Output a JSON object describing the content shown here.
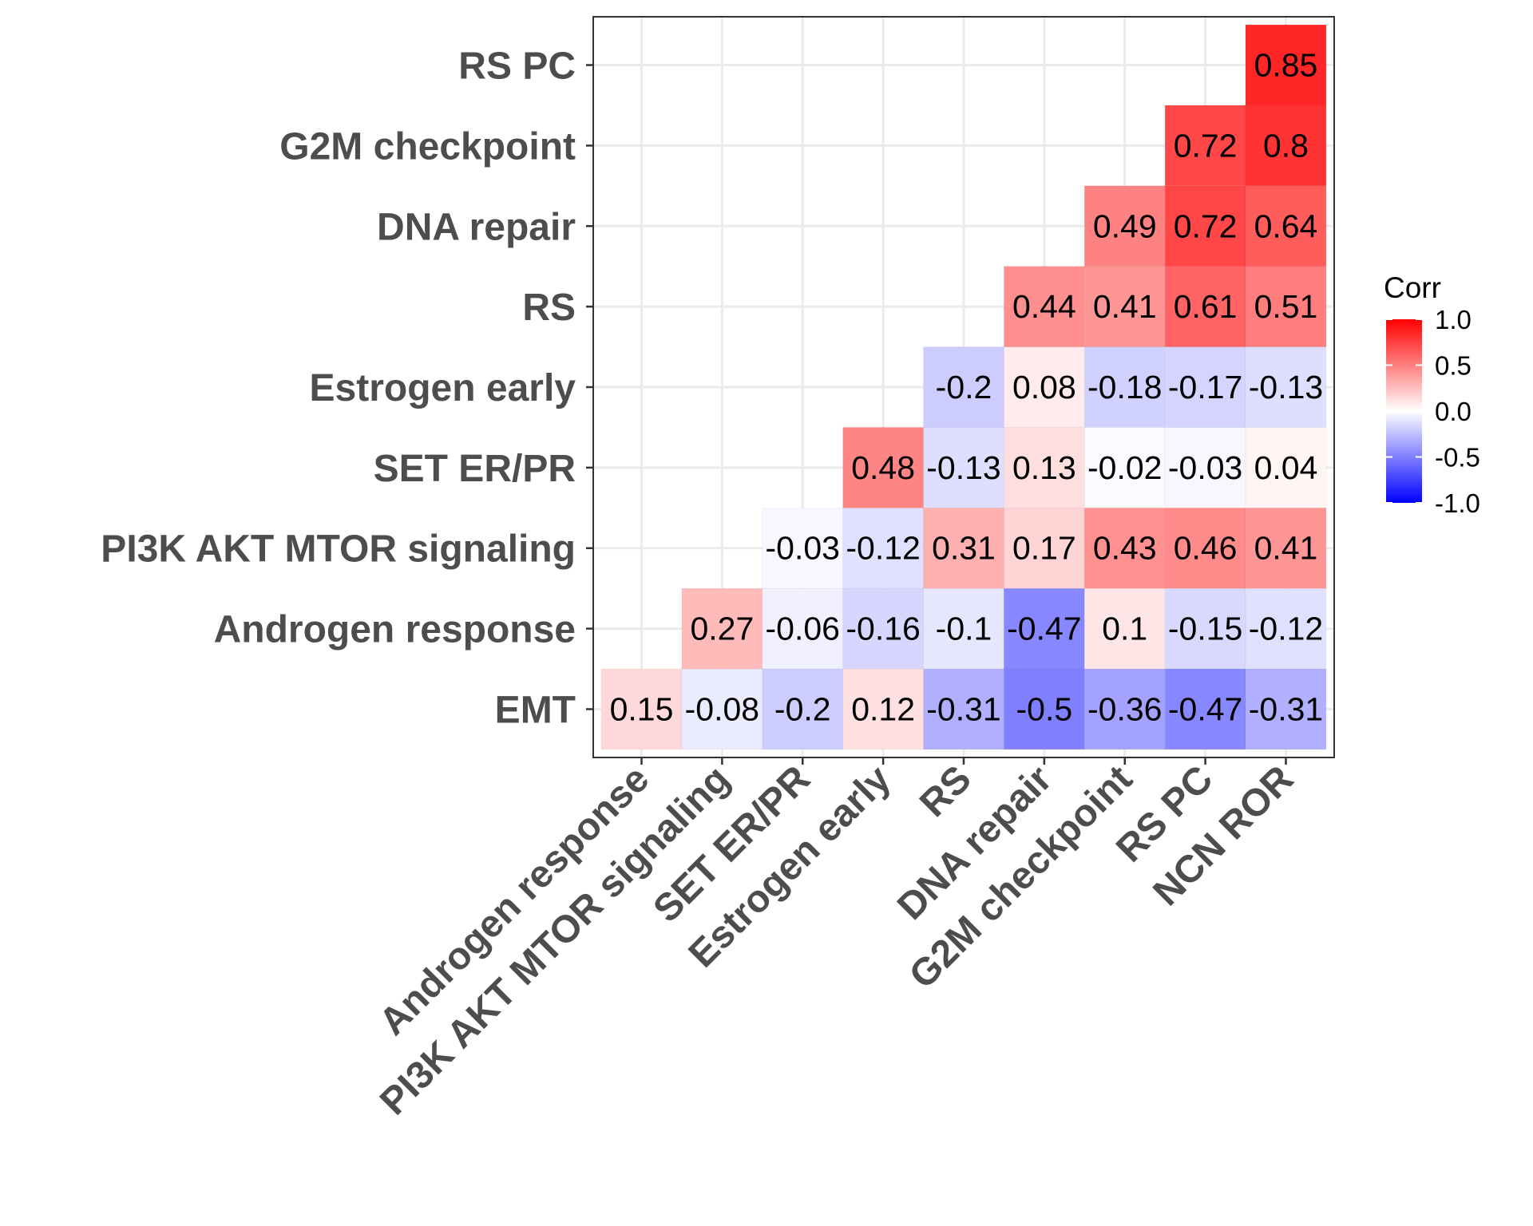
{
  "chart_data": {
    "type": "heatmap",
    "title": "",
    "xlabel": "",
    "ylabel": "",
    "x_categories": [
      "Androgen response",
      "PI3K AKT MTOR signaling",
      "SET ER/PR",
      "Estrogen early",
      "RS",
      "DNA repair",
      "G2M checkpoint",
      "RS PC",
      "NCN ROR"
    ],
    "y_categories": [
      "EMT",
      "Androgen response",
      "PI3K AKT MTOR signaling",
      "SET ER/PR",
      "Estrogen early",
      "RS",
      "DNA repair",
      "G2M checkpoint",
      "RS PC"
    ],
    "values": [
      [
        0.15,
        -0.08,
        -0.2,
        0.12,
        -0.31,
        -0.5,
        -0.36,
        -0.47,
        -0.31
      ],
      [
        null,
        0.27,
        -0.06,
        -0.16,
        -0.1,
        -0.47,
        0.1,
        -0.15,
        -0.12
      ],
      [
        null,
        null,
        -0.03,
        -0.12,
        0.31,
        0.17,
        0.43,
        0.46,
        0.41
      ],
      [
        null,
        null,
        null,
        0.48,
        -0.13,
        0.13,
        -0.02,
        -0.03,
        0.04
      ],
      [
        null,
        null,
        null,
        null,
        -0.2,
        0.08,
        -0.18,
        -0.17,
        -0.13
      ],
      [
        null,
        null,
        null,
        null,
        null,
        0.44,
        0.41,
        0.61,
        0.51
      ],
      [
        null,
        null,
        null,
        null,
        null,
        null,
        0.49,
        0.72,
        0.64
      ],
      [
        null,
        null,
        null,
        null,
        null,
        null,
        null,
        0.72,
        0.8
      ],
      [
        null,
        null,
        null,
        null,
        null,
        null,
        null,
        null,
        0.85
      ]
    ],
    "legend": {
      "title": "Corr",
      "position": "right",
      "range": [
        -1.0,
        1.0
      ],
      "ticks": [
        "1.0",
        "0.5",
        "0.0",
        "-0.5",
        "-1.0"
      ],
      "low_color": "#0000ff",
      "mid_color": "#ffffff",
      "high_color": "#ff0000"
    },
    "grid": true
  }
}
